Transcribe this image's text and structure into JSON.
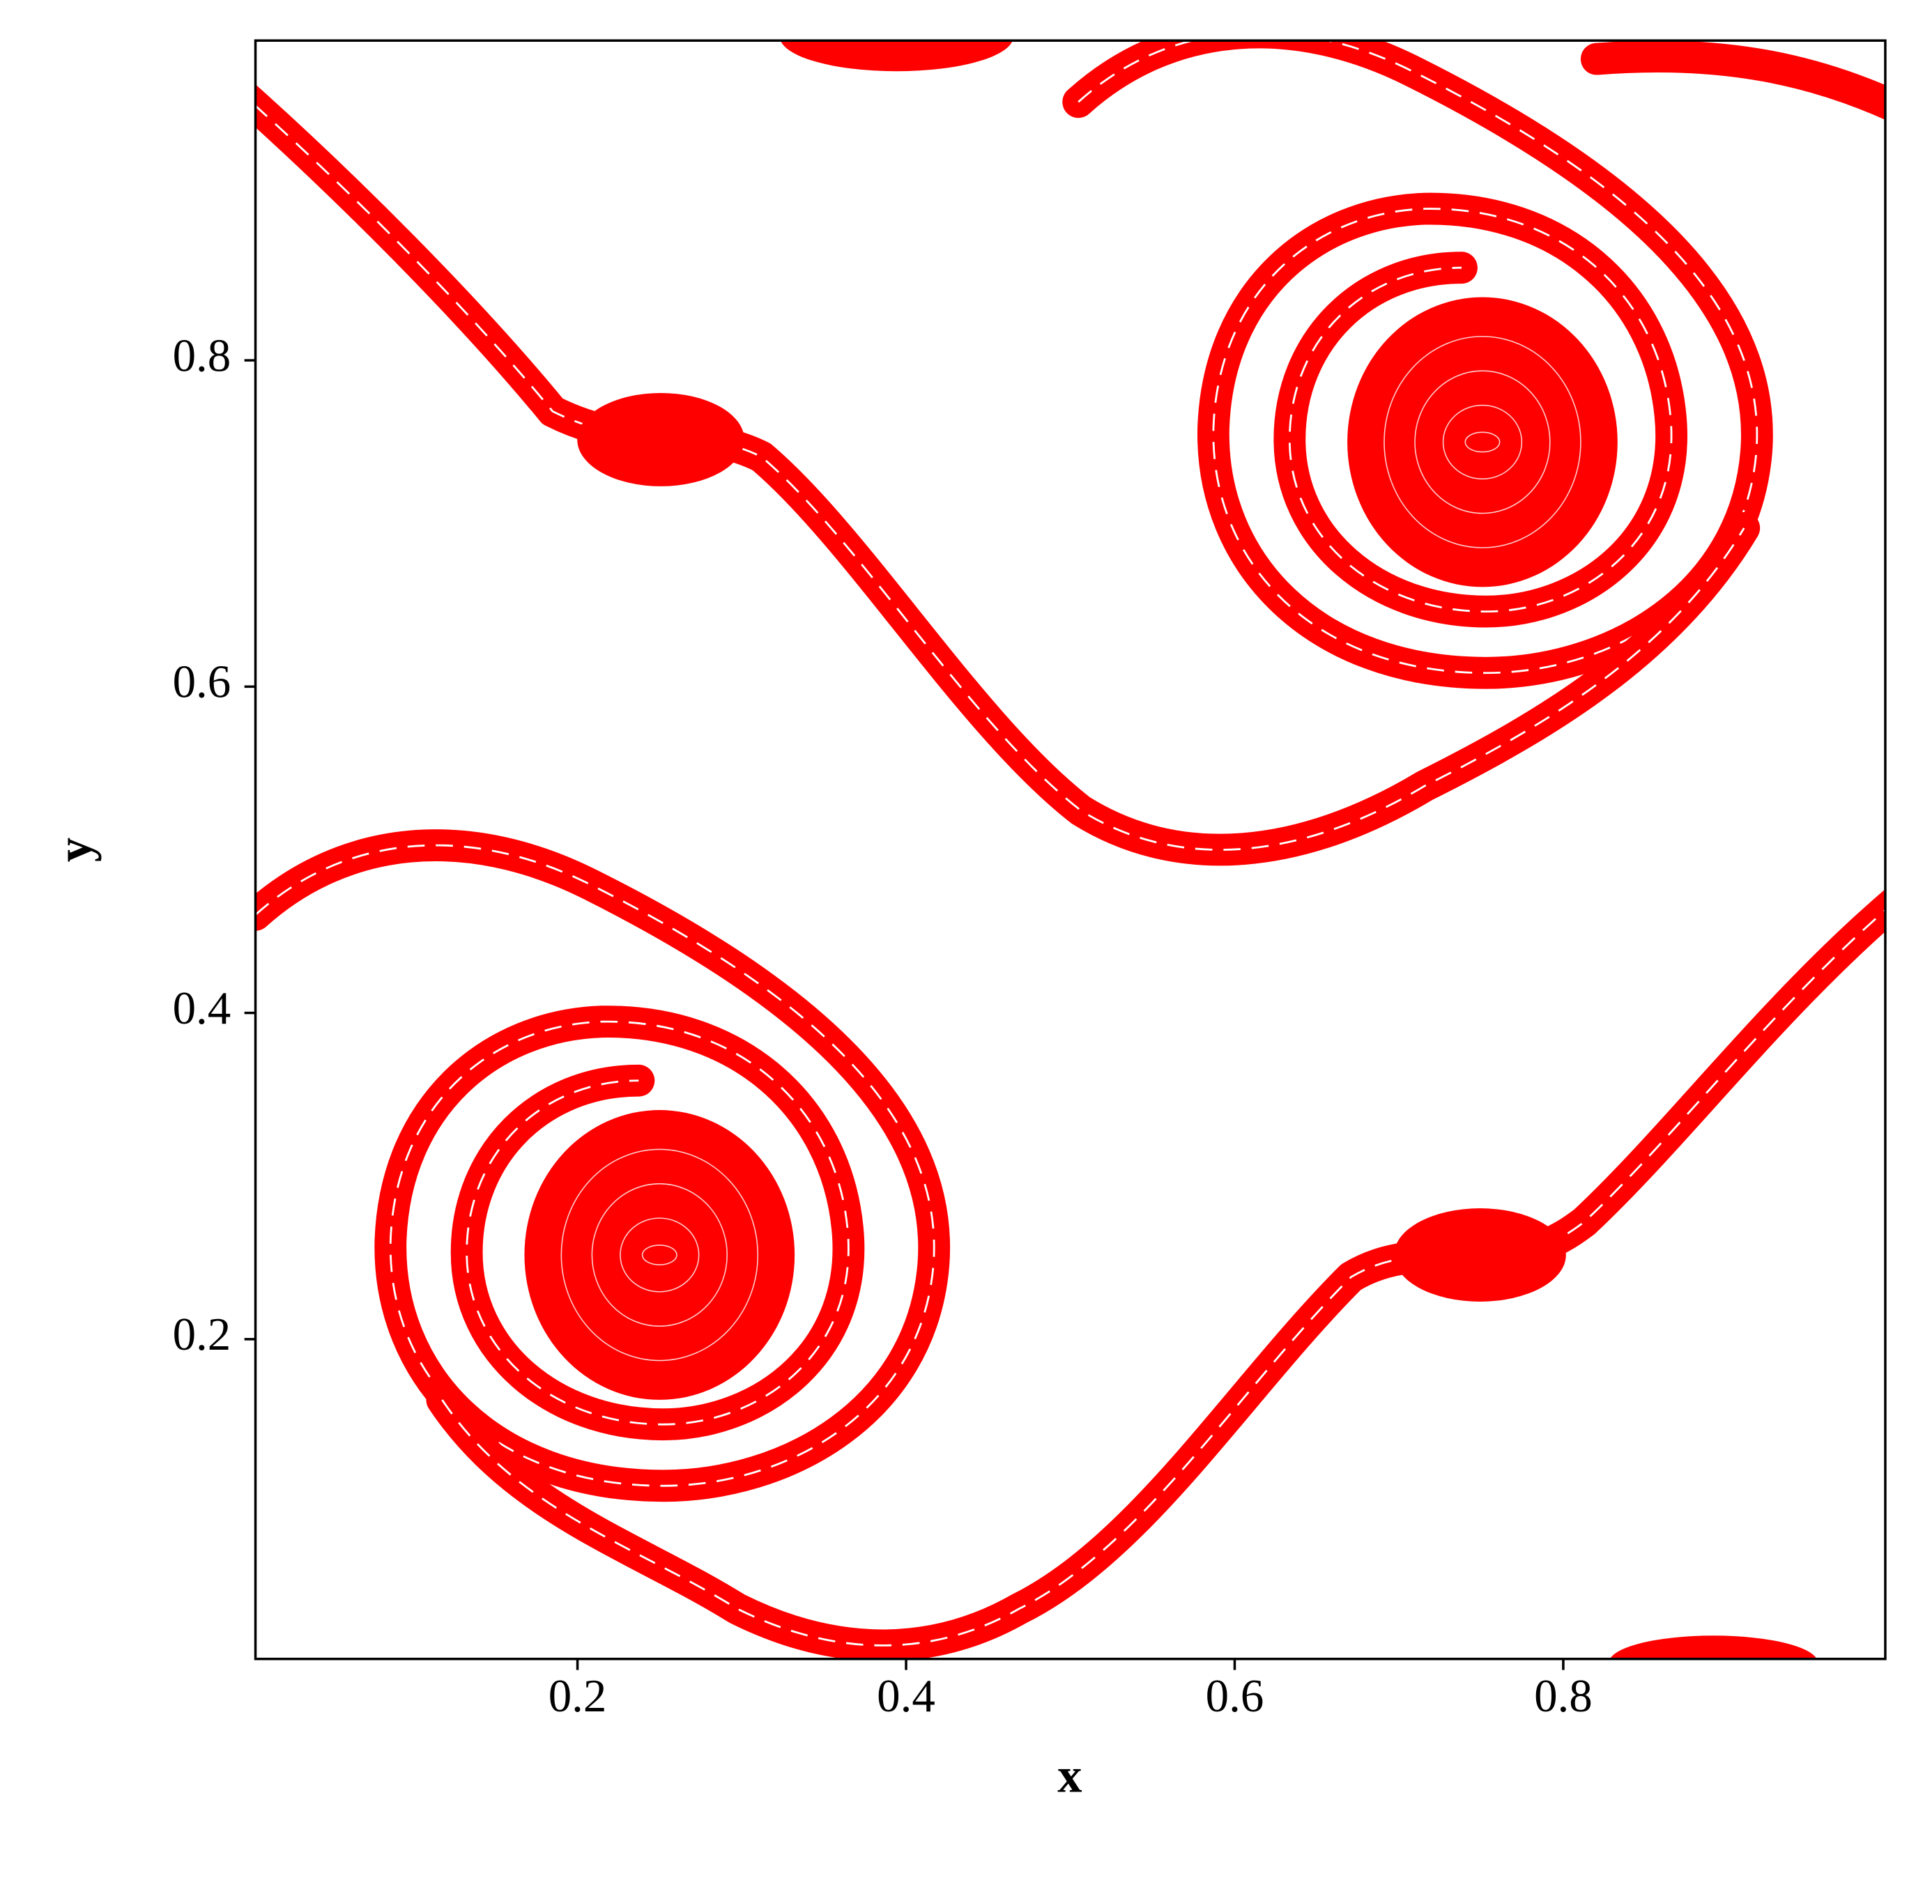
{
  "chart_data": {
    "type": "contour",
    "xlabel": "x",
    "ylabel": "y",
    "xlim": [
      0.004,
      0.996
    ],
    "ylim": [
      0.004,
      0.996
    ],
    "xticks": [
      0.2,
      0.4,
      0.6,
      0.8
    ],
    "yticks": [
      0.2,
      0.4,
      0.6,
      0.8
    ],
    "color": "#ff0000"
  }
}
